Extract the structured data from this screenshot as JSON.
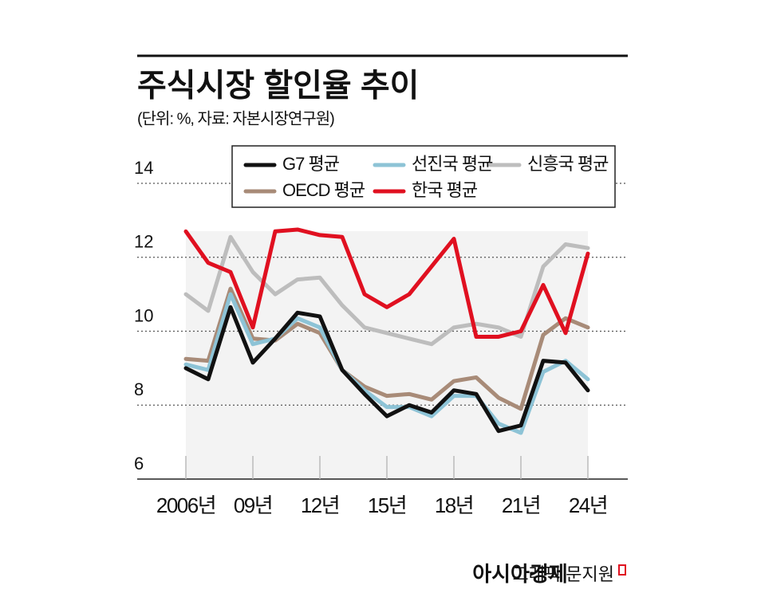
{
  "chart_data": {
    "type": "line",
    "title": "주식시장 할인율 추이",
    "subtitle": "(단위: %, 자료: 자본시장연구원)",
    "categories": [
      "2006년",
      null,
      null,
      "09년",
      null,
      null,
      "12년",
      null,
      null,
      "15년",
      null,
      null,
      "18년",
      null,
      null,
      "21년",
      null,
      null,
      "24년"
    ],
    "series": [
      {
        "name": "G7 평균",
        "color": "#111111",
        "values": [
          9.0,
          8.7,
          10.65,
          9.15,
          9.8,
          10.5,
          10.4,
          8.95,
          8.3,
          7.7,
          8.0,
          7.8,
          8.4,
          8.3,
          7.3,
          7.45,
          9.2,
          9.15,
          8.4
        ]
      },
      {
        "name": "선진국 평균",
        "color": "#8dc3d6",
        "values": [
          9.1,
          8.95,
          11.0,
          9.65,
          9.8,
          10.35,
          10.1,
          8.95,
          8.4,
          7.95,
          7.95,
          7.7,
          8.25,
          8.25,
          7.5,
          7.25,
          8.9,
          9.2,
          8.7
        ]
      },
      {
        "name": "신흥국 평균",
        "color": "#bdbdbd",
        "values": [
          11.0,
          10.55,
          12.55,
          11.6,
          11.0,
          11.4,
          11.45,
          10.7,
          10.1,
          9.95,
          9.8,
          9.65,
          10.1,
          10.2,
          10.1,
          9.85,
          11.75,
          12.35,
          12.25
        ]
      },
      {
        "name": "OECD 평균",
        "color": "#a88b78",
        "values": [
          9.25,
          9.2,
          11.15,
          9.8,
          9.75,
          10.2,
          9.95,
          8.95,
          8.5,
          8.25,
          8.3,
          8.15,
          8.65,
          8.75,
          8.2,
          7.9,
          9.9,
          10.35,
          10.1
        ]
      },
      {
        "name": "한국 평균",
        "color": "#e01020",
        "values": [
          12.7,
          11.85,
          11.6,
          10.1,
          12.7,
          12.75,
          12.6,
          12.55,
          11.0,
          10.65,
          11.0,
          11.75,
          12.5,
          9.85,
          9.85,
          10.0,
          11.25,
          9.95,
          12.1
        ]
      }
    ],
    "ylim": [
      6,
      14
    ],
    "yticks": [
      6,
      8,
      10,
      12,
      14
    ],
    "grid": true,
    "credit": "그래픽 문지원",
    "publisher": "아시아경제"
  }
}
